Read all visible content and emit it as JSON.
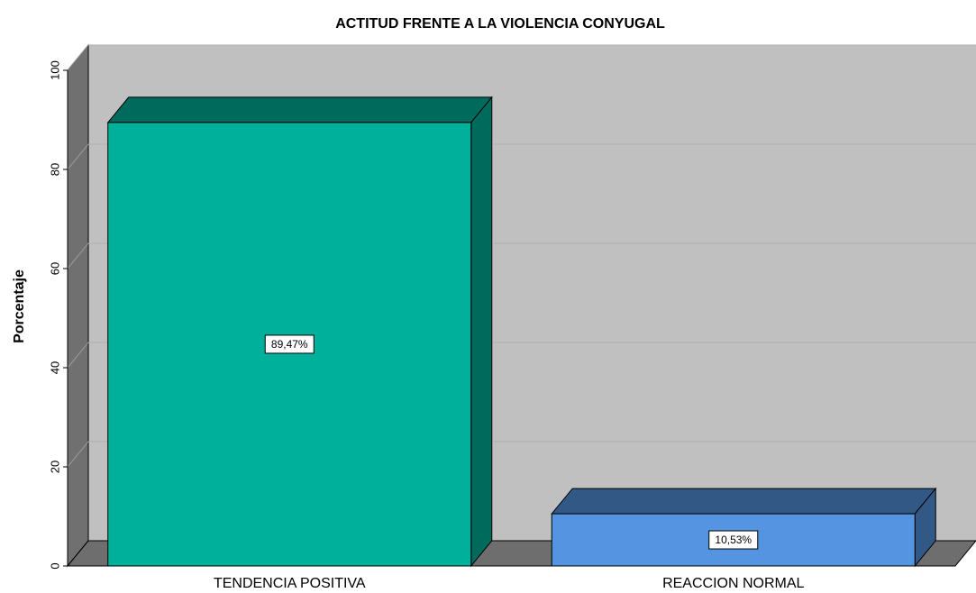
{
  "chart_data": {
    "type": "bar",
    "title": "ACTITUD FRENTE A LA VIOLENCIA CONYUGAL",
    "y_label": "Porcentaje",
    "categories": [
      "TENDENCIA POSITIVA",
      "REACCION NORMAL"
    ],
    "values": [
      89.47,
      10.53
    ],
    "value_labels": [
      "89,47%",
      "10,53%"
    ],
    "colors": [
      "#00b09b",
      "#5494e0"
    ],
    "ylim": [
      0,
      100
    ],
    "yticks": [
      0,
      20,
      40,
      60,
      80,
      100
    ],
    "grid": true
  }
}
